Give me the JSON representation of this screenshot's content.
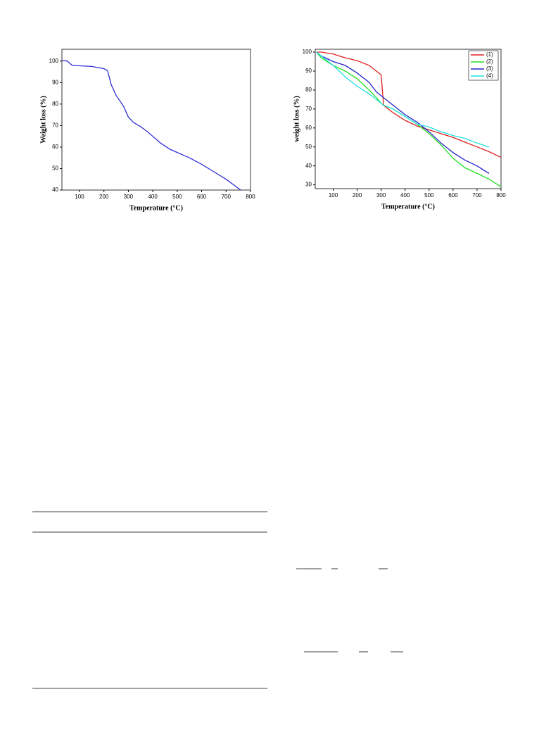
{
  "chart_data": [
    {
      "type": "line",
      "xlabel": "Temperature (°C)",
      "ylabel": "Weight loss (%)",
      "x": [
        28,
        50,
        70,
        100,
        150,
        200,
        215,
        230,
        250,
        280,
        300,
        320,
        350,
        380,
        400,
        430,
        470,
        500,
        550,
        600,
        650,
        700,
        760
      ],
      "series": [
        {
          "color": "#2e2ed6",
          "values": [
            100.3,
            100,
            98,
            97.8,
            97.5,
            96.5,
            95.5,
            89,
            84,
            79,
            74,
            71.5,
            69.5,
            67,
            65,
            62,
            59,
            57.5,
            55,
            52,
            48.5,
            45,
            40
          ]
        }
      ],
      "xlim": [
        28,
        800
      ],
      "ylim": [
        40,
        105.5
      ],
      "xticks": [
        100,
        200,
        300,
        400,
        500,
        600,
        700,
        800
      ],
      "yticks": [
        40,
        50,
        60,
        70,
        80,
        90,
        100
      ]
    },
    {
      "type": "line",
      "xlabel": "Temperature (°C)",
      "ylabel": "weight loss (%)",
      "x": [
        30,
        50,
        100,
        150,
        200,
        250,
        280,
        300,
        310,
        350,
        400,
        450,
        500,
        550,
        600,
        650,
        700,
        750,
        800
      ],
      "series": [
        {
          "name": "(1)",
          "color": "#e02020",
          "values": [
            100,
            100,
            99,
            97,
            95.5,
            93,
            90,
            88,
            72,
            68,
            64,
            61,
            59,
            57,
            55,
            52.5,
            50,
            47.5,
            44.5
          ]
        },
        {
          "name": "(2)",
          "color": "#22dd22",
          "values": [
            100,
            97,
            93,
            90,
            86,
            80,
            76,
            73,
            72,
            70,
            66,
            62,
            57,
            51,
            44,
            39,
            36,
            33,
            29
          ]
        },
        {
          "name": "(3)",
          "color": "#2222cc",
          "values": [
            100,
            98,
            95,
            93,
            89,
            84,
            79,
            77,
            76,
            72,
            67,
            63,
            58,
            52,
            47,
            43,
            40,
            36,
            null
          ]
        },
        {
          "name": "(4)",
          "color": "#22e0e0",
          "values": [
            100,
            98,
            93,
            87,
            82,
            78,
            75,
            73,
            72,
            70,
            66,
            62,
            60.5,
            58,
            56,
            54.5,
            52,
            50,
            null
          ]
        }
      ],
      "xlim": [
        25,
        800
      ],
      "ylim": [
        28,
        101.5
      ],
      "xticks": [
        100,
        200,
        300,
        400,
        500,
        600,
        700,
        800
      ],
      "yticks": [
        30,
        40,
        50,
        60,
        70,
        80,
        90,
        100
      ],
      "legend": "upper right"
    }
  ]
}
